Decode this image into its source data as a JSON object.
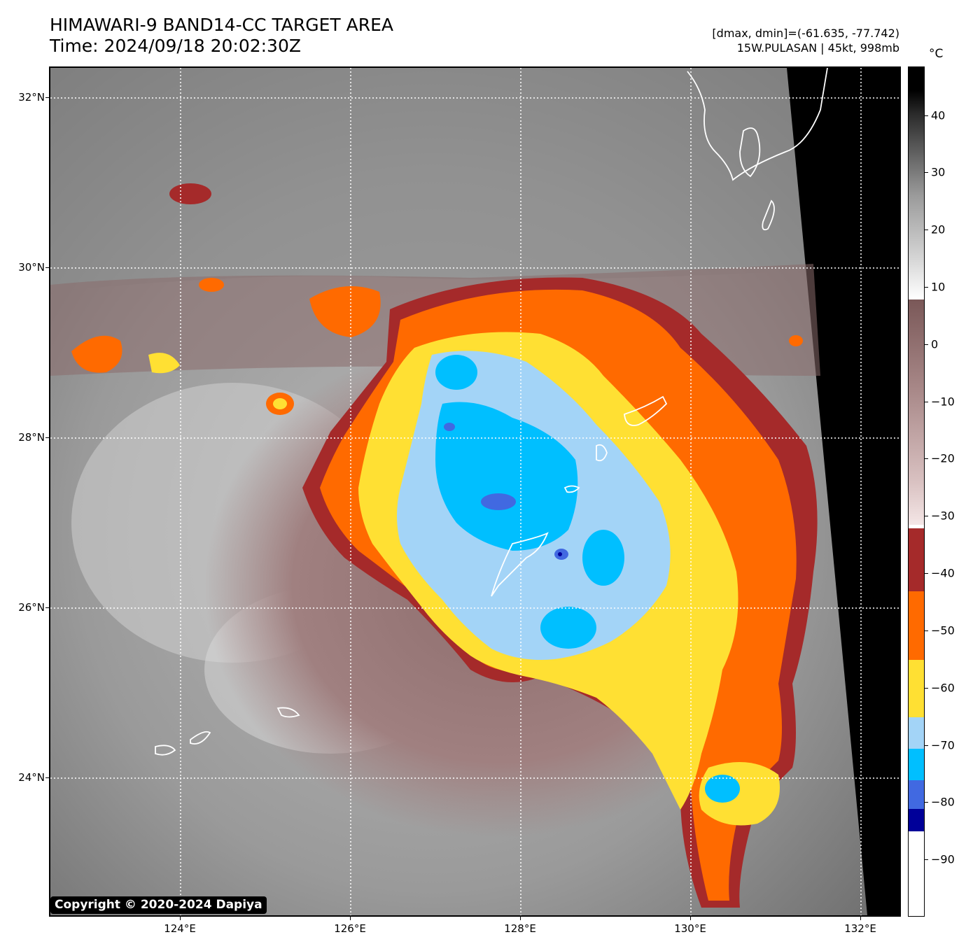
{
  "header": {
    "title_line1": "HIMAWARI-9 BAND14-CC TARGET AREA",
    "title_line2": "Time: 2024/09/18 20:02:30Z",
    "info_line1": "[dmax, dmin]=(-61.635, -77.742)",
    "info_line2": "15W.PULASAN | 45kt, 998mb"
  },
  "map": {
    "lat_labels": [
      "32°N",
      "30°N",
      "28°N",
      "26°N",
      "24°N"
    ],
    "lon_labels": [
      "124°E",
      "126°E",
      "128°E",
      "130°E",
      "132°E"
    ]
  },
  "colorbar": {
    "unit": "°C",
    "ticks": [
      "40",
      "30",
      "20",
      "10",
      "0",
      "−10",
      "−20",
      "−30",
      "−40",
      "−50",
      "−60",
      "−70",
      "−80",
      "−90"
    ],
    "segments": [
      {
        "from": -100,
        "to": -85,
        "color": "#ffffff"
      },
      {
        "from": -85,
        "to": -81,
        "color": "#000099"
      },
      {
        "from": -81,
        "to": -76,
        "color": "#4169e1"
      },
      {
        "from": -76,
        "to": -70.5,
        "color": "#00bfff"
      },
      {
        "from": -70.5,
        "to": -65,
        "color": "#a3d4f7"
      },
      {
        "from": -65,
        "to": -55,
        "color": "#ffe033"
      },
      {
        "from": -55,
        "to": -43,
        "color": "#ff6a00"
      },
      {
        "from": -43,
        "to": -32,
        "color": "#a52a2a"
      }
    ]
  },
  "copyright": "Copyright © 2020-2024 Dapiya"
}
